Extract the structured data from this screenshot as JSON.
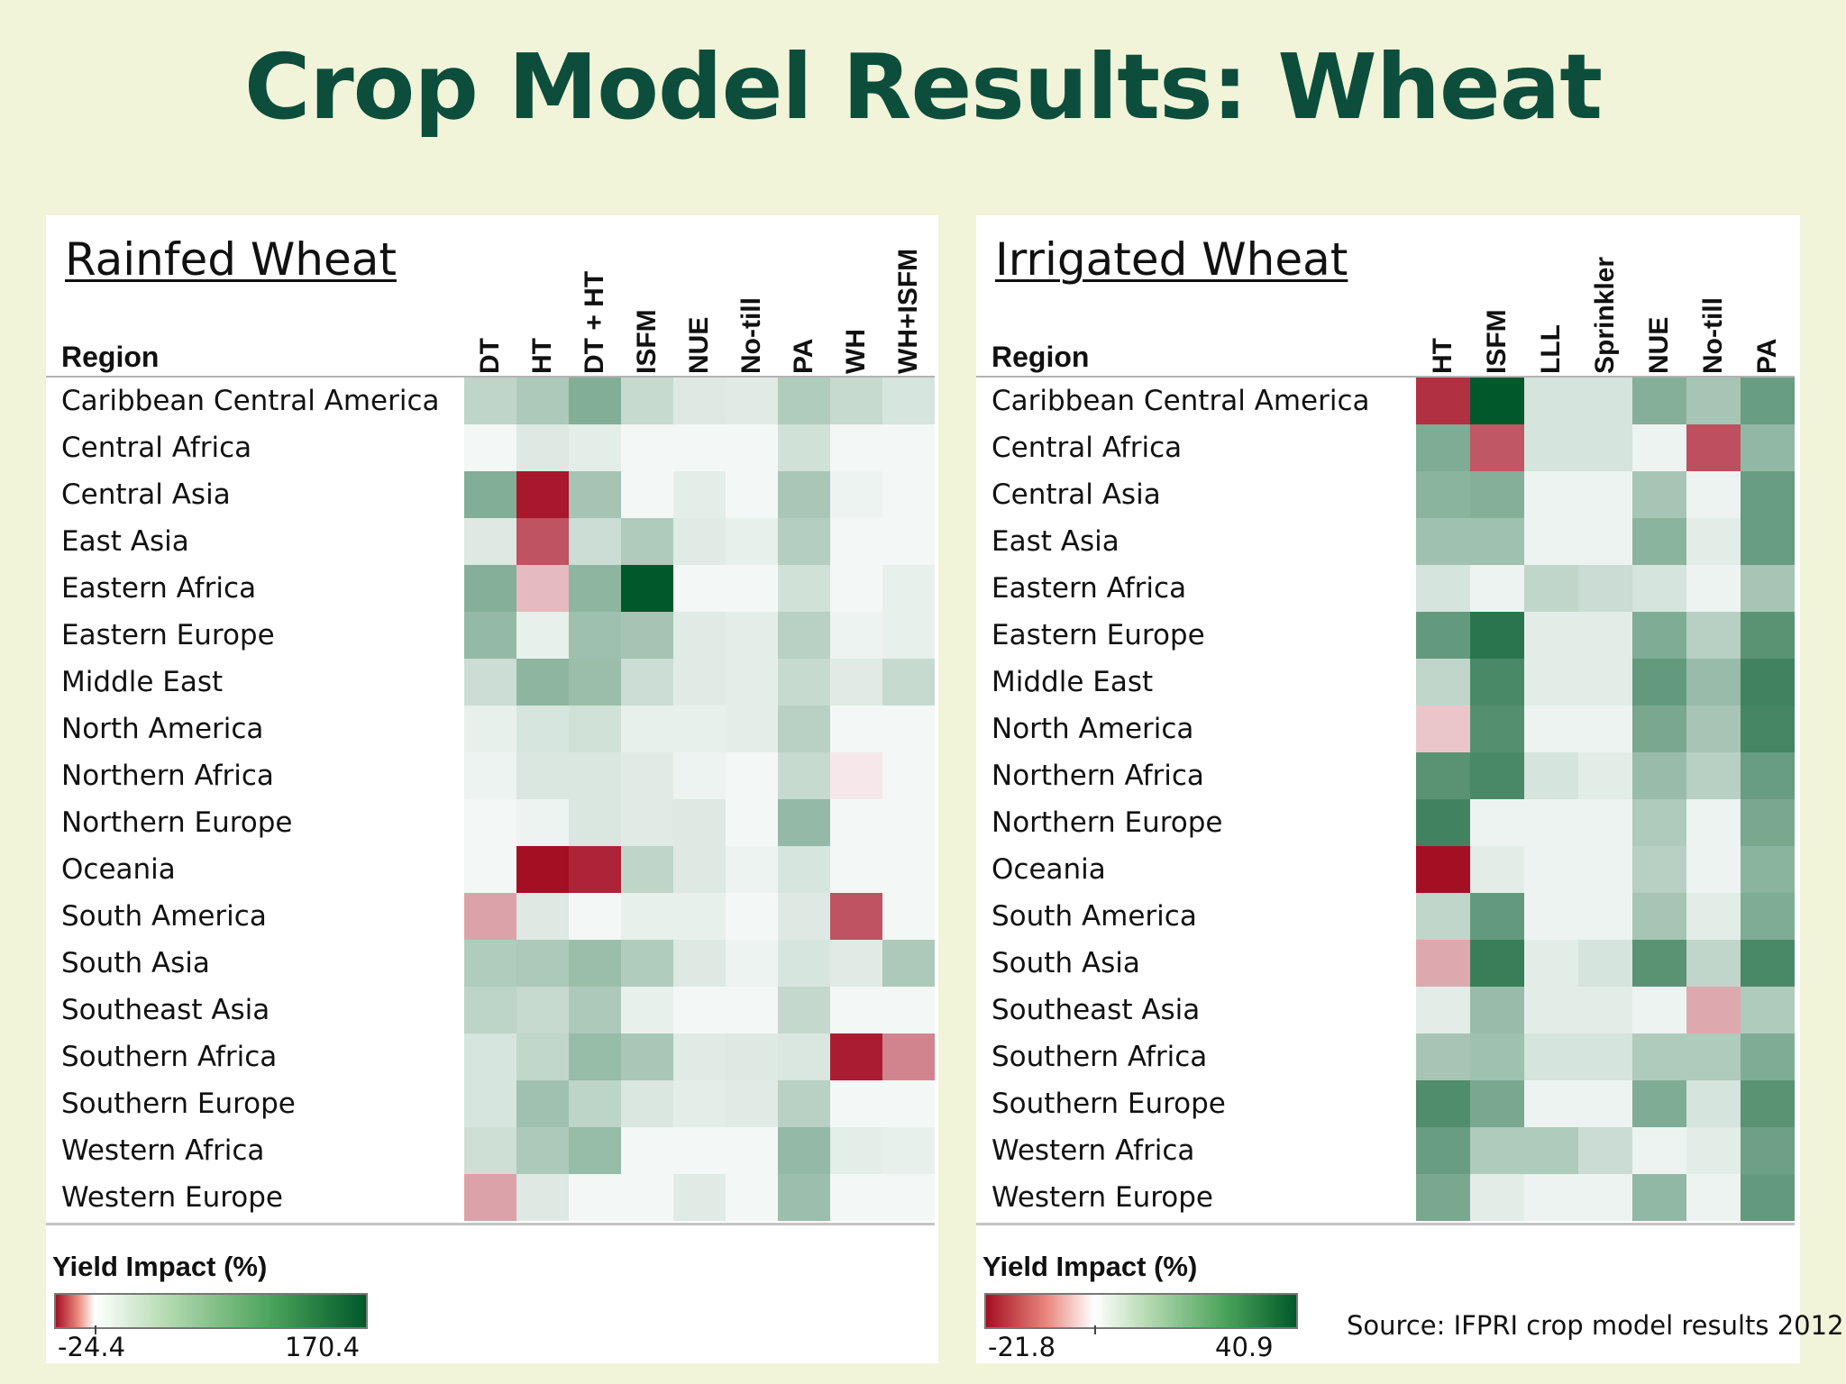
{
  "title": "Crop Model Results: Wheat",
  "source": "Source: IFPRI crop model results 2012",
  "colors": {
    "background": "#f1f4d8",
    "title": "#0c4d3c",
    "neg_max": "#a50f23",
    "neutral": "#ffffff",
    "pos_max": "#00592a"
  },
  "chart_data": [
    {
      "type": "heatmap",
      "title": "Rainfed Wheat",
      "row_header": "Region",
      "columns": [
        "DT",
        "HT",
        "DT + HT",
        "ISFM",
        "NUE",
        "No-till",
        "PA",
        "WH",
        "WH+ISFM"
      ],
      "rows": [
        "Caribbean Central America",
        "Central Africa",
        "Central Asia",
        "East Asia",
        "Eastern Africa",
        "Eastern Europe",
        "Middle East",
        "North America",
        "Northern Africa",
        "Northern Europe",
        "Oceania",
        "South America",
        "South Asia",
        "Southeast Asia",
        "Southern Africa",
        "Southern Europe",
        "Western Africa",
        "Western Europe"
      ],
      "values": [
        [
          17,
          26,
          52,
          14,
          6,
          5,
          24,
          14,
          8
        ],
        [
          1,
          6,
          4,
          1,
          1,
          1,
          10,
          1,
          1
        ],
        [
          52,
          -23,
          30,
          1,
          4,
          1,
          28,
          2,
          1
        ],
        [
          6,
          -14,
          12,
          25,
          5,
          3,
          22,
          1,
          1
        ],
        [
          50,
          -3,
          44,
          170,
          1,
          1,
          10,
          1,
          3
        ],
        [
          40,
          3,
          34,
          30,
          5,
          4,
          20,
          2,
          3
        ],
        [
          12,
          44,
          36,
          12,
          5,
          4,
          14,
          5,
          14
        ],
        [
          3,
          8,
          10,
          3,
          3,
          4,
          20,
          1,
          1
        ],
        [
          2,
          7,
          7,
          5,
          2,
          1,
          14,
          -0.5,
          1
        ],
        [
          1,
          2,
          7,
          5,
          6,
          1,
          40,
          1,
          1
        ],
        [
          1,
          -24.4,
          -21,
          17,
          6,
          2,
          8,
          1,
          1
        ],
        [
          -5,
          6,
          1,
          3,
          3,
          1,
          6,
          -14,
          1
        ],
        [
          24,
          26,
          36,
          24,
          6,
          2,
          8,
          5,
          26
        ],
        [
          18,
          14,
          26,
          3,
          1,
          1,
          15,
          1,
          1
        ],
        [
          8,
          16,
          38,
          28,
          5,
          6,
          7,
          -22,
          -8
        ],
        [
          8,
          33,
          18,
          7,
          4,
          5,
          20,
          1,
          1
        ],
        [
          11,
          26,
          38,
          1,
          1,
          1,
          40,
          4,
          3
        ],
        [
          -5,
          6,
          1,
          1,
          5,
          1,
          35,
          1,
          1
        ]
      ],
      "legend": {
        "title": "Yield Impact (%)",
        "min": -24.4,
        "max": 170.4,
        "min_label": "-24.4",
        "max_label": "170.4"
      }
    },
    {
      "type": "heatmap",
      "title": "Irrigated Wheat",
      "row_header": "Region",
      "columns": [
        "HT",
        "ISFM",
        "LLL",
        "Sprinkler",
        "NUE",
        "No-till",
        "PA"
      ],
      "rows": [
        "Caribbean Central America",
        "Central Africa",
        "Central Asia",
        "East Asia",
        "Eastern Africa",
        "Eastern Europe",
        "Middle East",
        "North America",
        "Northern Africa",
        "Northern Europe",
        "Oceania",
        "South America",
        "South Asia",
        "Southeast Asia",
        "Southern Africa",
        "Southern Europe",
        "Western Africa",
        "Western Europe"
      ],
      "values": [
        [
          -17,
          40.9,
          2,
          2,
          12,
          7,
          17
        ],
        [
          13,
          -12,
          2,
          2,
          0.5,
          -13,
          10
        ],
        [
          11,
          12,
          0.5,
          0.5,
          7,
          0.5,
          17
        ],
        [
          8,
          8,
          0.5,
          0.5,
          11,
          1,
          17
        ],
        [
          2,
          0.5,
          4,
          3,
          2,
          0.5,
          7
        ],
        [
          18,
          30,
          1,
          1,
          13,
          5,
          20
        ],
        [
          4,
          23,
          1,
          1,
          18,
          9,
          25
        ],
        [
          -2,
          21,
          0.5,
          0.5,
          14,
          7,
          24
        ],
        [
          20,
          23,
          2,
          1,
          9,
          5,
          17
        ],
        [
          25,
          0.5,
          0.5,
          0.5,
          6,
          0.5,
          14
        ],
        [
          -21.8,
          1,
          0.5,
          0.5,
          5,
          0.5,
          11
        ],
        [
          4,
          18,
          0.5,
          0.5,
          7,
          1,
          13
        ],
        [
          -4,
          27,
          1,
          2,
          20,
          4,
          23
        ],
        [
          1,
          9,
          1,
          1,
          0.5,
          -4,
          6
        ],
        [
          7,
          8,
          2,
          2,
          6,
          6,
          13
        ],
        [
          22,
          14,
          0.5,
          0.5,
          13,
          2,
          20
        ],
        [
          17,
          6,
          6,
          3,
          0.5,
          1,
          16
        ],
        [
          14,
          1,
          0.5,
          0.5,
          10,
          0.5,
          18
        ]
      ],
      "legend": {
        "title": "Yield Impact (%)",
        "min": -21.8,
        "max": 40.9,
        "min_label": "-21.8",
        "max_label": "40.9"
      }
    }
  ]
}
